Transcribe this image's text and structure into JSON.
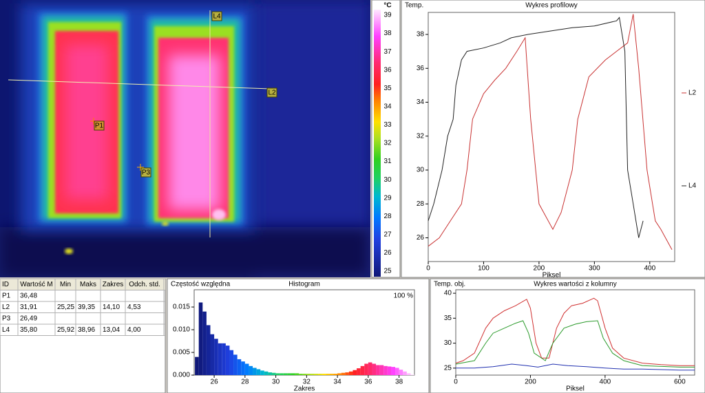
{
  "thermal_image": {
    "labels": [
      "L4",
      "L2",
      "P1",
      "P3"
    ]
  },
  "color_scale": {
    "unit": "°C",
    "ticks": [
      39,
      38,
      37,
      36,
      35,
      34,
      33,
      32,
      31,
      30,
      29,
      28,
      27,
      26,
      25
    ]
  },
  "table": {
    "header": [
      "ID",
      "Wartość M",
      "Min",
      "Maks",
      "Zakres",
      "Odch. std."
    ],
    "rows": [
      [
        "P1",
        "36,48"
      ],
      [
        "L2",
        "31,91",
        "25,25",
        "39,35",
        "14,10",
        "4,53"
      ],
      [
        "P3",
        "26,49"
      ],
      [
        "L4",
        "35,80",
        "25,92",
        "38,96",
        "13,04",
        "4,00"
      ]
    ]
  },
  "chart_data": [
    {
      "type": "line",
      "title": "Wykres profilowy",
      "y_label": "Temp.",
      "x_label": "Piksel",
      "xlim": [
        0,
        445
      ],
      "xticks": [
        0,
        100,
        200,
        300,
        400
      ],
      "ylim": [
        24.6,
        39.3
      ],
      "yticks": [
        26,
        28,
        30,
        32,
        34,
        36,
        38
      ],
      "series": [
        {
          "name": "L2",
          "color": "#c83030",
          "x": [
            0,
            20,
            40,
            60,
            70,
            80,
            100,
            120,
            140,
            160,
            175,
            185,
            200,
            225,
            240,
            260,
            270,
            290,
            320,
            340,
            360,
            370,
            380,
            395,
            410,
            420,
            440
          ],
          "values": [
            25.5,
            26,
            27,
            28,
            30,
            33,
            34.5,
            35.3,
            36,
            37,
            37.8,
            33,
            28,
            26.5,
            27.5,
            30,
            33,
            35.5,
            36.5,
            37,
            37.5,
            39.2,
            36,
            30,
            27,
            26.5,
            25.3
          ]
        },
        {
          "name": "L4",
          "color": "#202020",
          "x": [
            0,
            10,
            25,
            35,
            45,
            50,
            60,
            70,
            100,
            130,
            150,
            180,
            220,
            260,
            300,
            340,
            345,
            355,
            360,
            370,
            380,
            388
          ],
          "values": [
            27,
            28,
            30,
            32,
            33,
            35,
            36.5,
            37,
            37.2,
            37.5,
            37.8,
            38,
            38.2,
            38.4,
            38.5,
            38.8,
            39,
            37,
            30,
            28,
            26,
            27
          ]
        }
      ]
    },
    {
      "type": "histogram",
      "title": "Histogram",
      "y_label": "Częstość względna",
      "x_label": "Zakres",
      "annotation": "100 %",
      "xlim": [
        24.7,
        39.0
      ],
      "xticks": [
        26,
        28,
        30,
        32,
        34,
        36,
        38
      ],
      "ylim": [
        0,
        0.0188
      ],
      "yticks": [
        {
          "value": 0,
          "label": "0.000"
        },
        {
          "value": 0.005,
          "label": "0.005"
        },
        {
          "value": 0.01,
          "label": "0.010"
        },
        {
          "value": 0.015,
          "label": "0.015"
        }
      ],
      "bins": [
        24.75,
        25,
        25.25,
        25.5,
        25.75,
        26,
        26.25,
        26.5,
        26.75,
        27,
        27.25,
        27.5,
        27.75,
        28,
        28.25,
        28.5,
        28.75,
        29,
        29.25,
        29.5,
        29.75,
        30,
        30.25,
        30.5,
        30.75,
        31,
        31.25,
        31.5,
        31.75,
        32,
        32.25,
        32.5,
        32.75,
        33,
        33.25,
        33.5,
        33.75,
        34,
        34.25,
        34.5,
        34.75,
        35,
        35.25,
        35.5,
        35.75,
        36,
        36.25,
        36.5,
        36.75,
        37,
        37.25,
        37.5,
        37.75,
        38,
        38.25,
        38.5,
        38.75,
        39
      ],
      "values": [
        0.004,
        0.016,
        0.014,
        0.011,
        0.009,
        0.008,
        0.007,
        0.007,
        0.0065,
        0.0055,
        0.0045,
        0.0035,
        0.003,
        0.0025,
        0.002,
        0.0016,
        0.0013,
        0.001,
        0.0008,
        0.0006,
        0.0005,
        0.0004,
        0.0004,
        0.0004,
        0.0004,
        0.0004,
        0.0004,
        0.0003,
        0.0003,
        0.0003,
        0.0003,
        0.0003,
        0.0003,
        0.0003,
        0.0003,
        0.0003,
        0.0003,
        0.0004,
        0.0005,
        0.0006,
        0.0008,
        0.0011,
        0.0015,
        0.002,
        0.0025,
        0.0028,
        0.0025,
        0.0022,
        0.0022,
        0.002,
        0.0019,
        0.0018,
        0.0016,
        0.0012,
        0.0008,
        0.0004,
        0.0001
      ]
    },
    {
      "type": "line",
      "title": "Wykres wartości z kolumny",
      "y_label": "Temp. obj.",
      "x_label": "Piksel",
      "xlim": [
        0,
        640
      ],
      "xticks": [
        0,
        200,
        400,
        600
      ],
      "ylim": [
        23.6,
        40.7
      ],
      "yticks": [
        25,
        30,
        35,
        40
      ],
      "series": [
        {
          "color": "#d03030",
          "x": [
            0,
            20,
            50,
            80,
            100,
            130,
            160,
            190,
            200,
            215,
            230,
            250,
            270,
            290,
            310,
            340,
            370,
            380,
            400,
            420,
            450,
            500,
            550,
            600,
            640
          ],
          "values": [
            26,
            26.5,
            28,
            33,
            35,
            36.5,
            37.5,
            38.8,
            37,
            30,
            27,
            27,
            33,
            36,
            37.5,
            38,
            39,
            38.5,
            33,
            29,
            27,
            26,
            25.7,
            25.5,
            25.5
          ]
        },
        {
          "color": "#2a9a2a",
          "x": [
            0,
            50,
            80,
            100,
            130,
            160,
            180,
            195,
            210,
            240,
            260,
            290,
            320,
            350,
            380,
            395,
            420,
            450,
            500,
            600,
            640
          ],
          "values": [
            25.8,
            26.5,
            30,
            32,
            33,
            34,
            34.5,
            32,
            28,
            26.5,
            30,
            33,
            33.8,
            34.3,
            34.5,
            31,
            28,
            26.5,
            25.5,
            25.2,
            25.2
          ]
        },
        {
          "color": "#2030b0",
          "x": [
            0,
            50,
            100,
            150,
            190,
            220,
            260,
            300,
            350,
            400,
            450,
            500,
            600,
            640
          ],
          "values": [
            25,
            25,
            25.3,
            25.8,
            25.5,
            25.2,
            25.8,
            25.5,
            25.3,
            25,
            24.8,
            24.8,
            24.6,
            24.6
          ]
        }
      ]
    }
  ]
}
